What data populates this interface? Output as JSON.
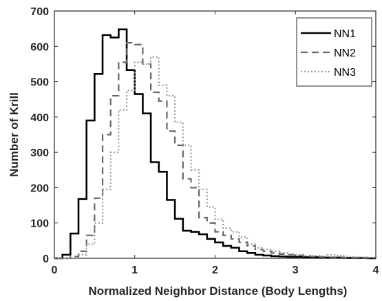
{
  "chart_data": {
    "type": "line",
    "title": "",
    "xlabel": "Normalized Neighbor Distance (Body Lengths)",
    "ylabel": "Number of Krill",
    "xlim": [
      0,
      4
    ],
    "ylim": [
      0,
      700
    ],
    "xticks": [
      0,
      1,
      2,
      3,
      4
    ],
    "yticks": [
      0,
      100,
      200,
      300,
      400,
      500,
      600,
      700
    ],
    "grid": false,
    "legend_position": "top-right",
    "bin_edges": [
      0,
      0.1,
      0.2,
      0.3,
      0.4,
      0.5,
      0.6,
      0.7,
      0.8,
      0.9,
      1.0,
      1.1,
      1.2,
      1.3,
      1.4,
      1.5,
      1.6,
      1.7,
      1.8,
      1.9,
      2.0,
      2.1,
      2.2,
      2.3,
      2.4,
      2.5,
      2.6,
      2.7,
      2.8,
      2.9,
      3.0,
      3.1,
      3.2,
      3.3,
      3.4,
      3.5,
      3.6,
      3.7,
      3.8,
      3.9,
      4.0
    ],
    "series": [
      {
        "name": "NN1",
        "color": "#000000",
        "style": "solid",
        "values": [
          0,
          10,
          70,
          168,
          390,
          522,
          632,
          625,
          648,
          533,
          465,
          410,
          272,
          245,
          165,
          112,
          78,
          75,
          68,
          55,
          45,
          35,
          30,
          20,
          15,
          10,
          8,
          6,
          5,
          4,
          4,
          3,
          3,
          2,
          2,
          2,
          1,
          1,
          1,
          0
        ]
      },
      {
        "name": "NN2",
        "color": "#666666",
        "style": "dashed",
        "values": [
          0,
          0,
          5,
          20,
          65,
          170,
          350,
          460,
          555,
          610,
          605,
          550,
          470,
          445,
          360,
          320,
          225,
          200,
          115,
          100,
          75,
          65,
          55,
          45,
          35,
          25,
          20,
          15,
          12,
          10,
          8,
          6,
          5,
          4,
          3,
          3,
          2,
          2,
          2,
          1
        ]
      },
      {
        "name": "NN3",
        "color": "#999999",
        "style": "dotted",
        "values": [
          0,
          0,
          0,
          10,
          40,
          100,
          195,
          300,
          420,
          475,
          555,
          550,
          570,
          490,
          460,
          385,
          320,
          250,
          195,
          145,
          110,
          85,
          75,
          60,
          40,
          30,
          25,
          20,
          15,
          12,
          10,
          8,
          7,
          6,
          10,
          8,
          5,
          4,
          3,
          2
        ]
      }
    ]
  }
}
